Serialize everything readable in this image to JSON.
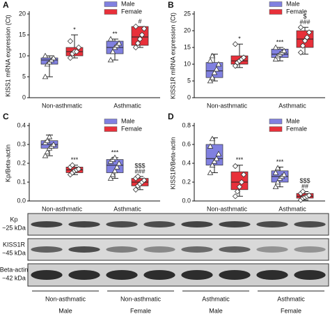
{
  "chart_data": [
    {
      "type": "box",
      "panel": "A",
      "ylabel": "KISS1 mRNA expression (Ct)",
      "categories": [
        "Non-asthmatic",
        "Asthmatic"
      ],
      "ylim": [
        0,
        20
      ],
      "yticks": [
        0,
        5,
        10,
        15,
        20
      ],
      "series": [
        {
          "name": "Male",
          "color": "#8080e0",
          "marker": "triangle",
          "boxes": [
            {
              "min": 5,
              "q1": 8,
              "median": 9,
              "q3": 9.5,
              "max": 10,
              "points": [
                5,
                8,
                8.5,
                9,
                9.5,
                10
              ]
            },
            {
              "min": 9,
              "q1": 10.5,
              "median": 12,
              "q3": 13.5,
              "max": 14,
              "points": [
                9,
                11,
                12,
                12.5,
                13,
                14
              ],
              "annotations": [
                "**"
              ]
            }
          ]
        },
        {
          "name": "Female",
          "color": "#e8303a",
          "marker": "diamond",
          "boxes": [
            {
              "min": 9.5,
              "q1": 10,
              "median": 11,
              "q3": 12,
              "max": 15,
              "points": [
                9.5,
                10.5,
                11,
                11,
                12,
                13.5
              ],
              "annotations": [
                "*"
              ]
            },
            {
              "min": 12,
              "q1": 12.5,
              "median": 14.5,
              "q3": 17,
              "max": 17,
              "points": [
                12,
                13,
                14,
                15,
                16.5,
                17
              ],
              "annotations": [
                "#"
              ]
            }
          ]
        }
      ]
    },
    {
      "type": "box",
      "panel": "B",
      "ylabel": "KISS1R mRNA expression (Ct)",
      "categories": [
        "Non-asthmatic",
        "Asthmatic"
      ],
      "ylim": [
        0,
        25
      ],
      "yticks": [
        0,
        5,
        10,
        15,
        20,
        25
      ],
      "series": [
        {
          "name": "Male",
          "color": "#8080e0",
          "marker": "triangle",
          "boxes": [
            {
              "min": 5,
              "q1": 6,
              "median": 8,
              "q3": 10.5,
              "max": 13,
              "points": [
                5,
                6,
                7.5,
                8.5,
                10,
                11,
                12.5
              ]
            },
            {
              "min": 11,
              "q1": 12,
              "median": 13,
              "q3": 14.5,
              "max": 15,
              "points": [
                11.5,
                12.5,
                13,
                13.5,
                14,
                15
              ],
              "annotations": [
                "***"
              ]
            }
          ]
        },
        {
          "name": "Female",
          "color": "#e8303a",
          "marker": "diamond",
          "boxes": [
            {
              "min": 9,
              "q1": 10,
              "median": 11,
              "q3": 12.5,
              "max": 16,
              "points": [
                9.5,
                10.5,
                11,
                11.5,
                12,
                16
              ],
              "annotations": [
                "*"
              ]
            },
            {
              "min": 13,
              "q1": 15,
              "median": 17.5,
              "q3": 20,
              "max": 21,
              "points": [
                13.5,
                15.5,
                17,
                18,
                19.5,
                21
              ],
              "annotations": [
                "$",
                "###"
              ]
            }
          ]
        }
      ]
    },
    {
      "type": "box",
      "panel": "C",
      "ylabel": "Kp/Beta-actin",
      "categories": [
        "Non-asthmatic",
        "Asthmatic"
      ],
      "ylim": [
        0,
        0.4
      ],
      "yticks": [
        {
          "value": 0,
          "label": "0.0"
        },
        0.1,
        0.2,
        0.3,
        0.4
      ],
      "series": [
        {
          "name": "Male",
          "color": "#8080e0",
          "marker": "triangle",
          "boxes": [
            {
              "min": 0.24,
              "q1": 0.28,
              "median": 0.3,
              "q3": 0.32,
              "max": 0.35,
              "points": [
                0.24,
                0.26,
                0.28,
                0.29,
                0.3,
                0.31,
                0.32,
                0.34
              ]
            },
            {
              "min": 0.12,
              "q1": 0.15,
              "median": 0.19,
              "q3": 0.22,
              "max": 0.23,
              "points": [
                0.12,
                0.14,
                0.16,
                0.18,
                0.2,
                0.21,
                0.22,
                0.23
              ],
              "annotations": [
                "***"
              ]
            }
          ]
        },
        {
          "name": "Female",
          "color": "#e8303a",
          "marker": "diamond",
          "boxes": [
            {
              "min": 0.14,
              "q1": 0.15,
              "median": 0.165,
              "q3": 0.18,
              "max": 0.19,
              "points": [
                0.14,
                0.15,
                0.16,
                0.165,
                0.17,
                0.18,
                0.19
              ],
              "annotations": [
                "***"
              ]
            },
            {
              "min": 0.06,
              "q1": 0.08,
              "median": 0.1,
              "q3": 0.12,
              "max": 0.13,
              "points": [
                0.06,
                0.08,
                0.09,
                0.1,
                0.11,
                0.12,
                0.13
              ],
              "annotations": [
                "$$$",
                "###"
              ]
            }
          ]
        }
      ]
    },
    {
      "type": "box",
      "panel": "D",
      "ylabel": "KISS1R/Beta-actin",
      "categories": [
        "Non-asthmatic",
        "Asthmatic"
      ],
      "ylim": [
        0,
        0.8
      ],
      "yticks": [
        {
          "value": 0,
          "label": "0.0"
        },
        0.2,
        0.4,
        0.6,
        0.8
      ],
      "series": [
        {
          "name": "Male",
          "color": "#8080e0",
          "marker": "triangle",
          "boxes": [
            {
              "min": 0.3,
              "q1": 0.38,
              "median": 0.45,
              "q3": 0.6,
              "max": 0.67,
              "points": [
                0.3,
                0.38,
                0.42,
                0.45,
                0.5,
                0.58,
                0.66
              ]
            },
            {
              "min": 0.15,
              "q1": 0.2,
              "median": 0.26,
              "q3": 0.32,
              "max": 0.36,
              "points": [
                0.15,
                0.2,
                0.24,
                0.26,
                0.28,
                0.3,
                0.35
              ],
              "annotations": [
                "***"
              ]
            }
          ]
        },
        {
          "name": "Female",
          "color": "#e8303a",
          "marker": "diamond",
          "boxes": [
            {
              "min": 0.05,
              "q1": 0.12,
              "median": 0.2,
              "q3": 0.31,
              "max": 0.38,
              "points": [
                0.05,
                0.1,
                0.15,
                0.2,
                0.28,
                0.37
              ],
              "annotations": [
                "***"
              ]
            },
            {
              "min": 0.01,
              "q1": 0.03,
              "median": 0.05,
              "q3": 0.08,
              "max": 0.1,
              "points": [
                0.01,
                0.03,
                0.04,
                0.05,
                0.06,
                0.08,
                0.1
              ],
              "annotations": [
                "$$$",
                "##"
              ]
            }
          ]
        }
      ]
    }
  ],
  "blot": {
    "rows": [
      [
        "Kp",
        "~25 kDa"
      ],
      [
        "KISS1R",
        "~45 kDa"
      ],
      [
        "Beta-actin",
        "~42 kDa"
      ]
    ],
    "groups": [
      [
        "Non-asthmatic",
        "Male"
      ],
      [
        "Non-asthmatic",
        "Female"
      ],
      [
        "Asthmatic",
        "Male"
      ],
      [
        "Asthmatic",
        "Female"
      ]
    ]
  }
}
